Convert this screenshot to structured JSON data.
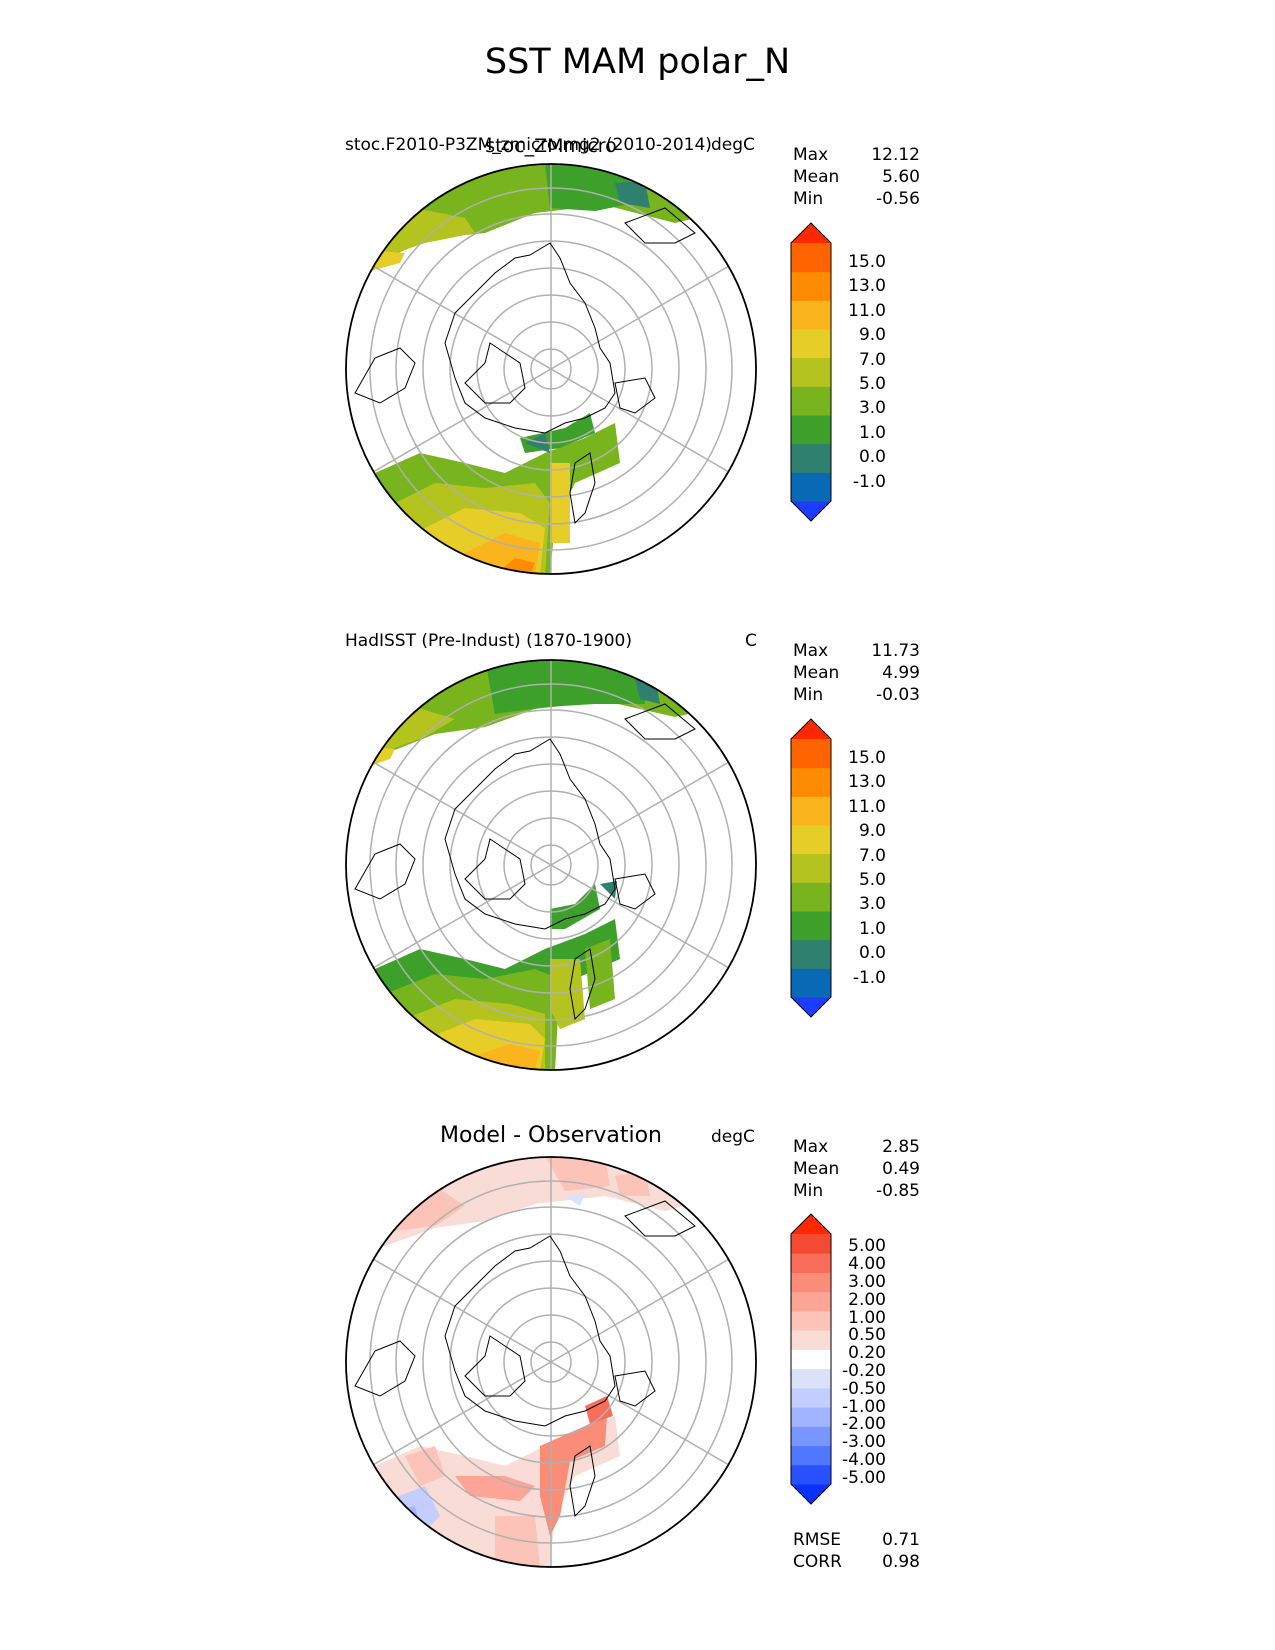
{
  "figure": {
    "title": "SST MAM polar_N"
  },
  "panels": [
    {
      "left_label": "stoc.F2010-P3ZM_zmicro.mg2 (2010-2014)",
      "center_label": "stoc_ZMmicro",
      "right_label": "degC",
      "stats": [
        {
          "name": "Max",
          "value": "12.12"
        },
        {
          "name": "Mean",
          "value": "5.60"
        },
        {
          "name": "Min",
          "value": "-0.56"
        }
      ],
      "colorbar": {
        "ticks": [
          "15.0",
          "13.0",
          "11.0",
          "9.0",
          "7.0",
          "5.0",
          "3.0",
          "1.0",
          "0.0",
          "-1.0"
        ],
        "colors": [
          "#1e3cff",
          "#0a69b4",
          "#308070",
          "#3ca02a",
          "#78b41e",
          "#b4c31e",
          "#e6cd28",
          "#fab41e",
          "#ff8c00",
          "#ff6400",
          "#ff2800"
        ]
      }
    },
    {
      "left_label": "HadISST (Pre-Indust) (1870-1900)",
      "center_label": "",
      "right_label": "C",
      "stats": [
        {
          "name": "Max",
          "value": "11.73"
        },
        {
          "name": "Mean",
          "value": "4.99"
        },
        {
          "name": "Min",
          "value": "-0.03"
        }
      ],
      "colorbar": {
        "ticks": [
          "15.0",
          "13.0",
          "11.0",
          "9.0",
          "7.0",
          "5.0",
          "3.0",
          "1.0",
          "0.0",
          "-1.0"
        ],
        "colors": [
          "#1e3cff",
          "#0a69b4",
          "#308070",
          "#3ca02a",
          "#78b41e",
          "#b4c31e",
          "#e6cd28",
          "#fab41e",
          "#ff8c00",
          "#ff6400",
          "#ff2800"
        ]
      }
    },
    {
      "left_label": "",
      "center_label": "Model - Observation",
      "right_label": "degC",
      "stats": [
        {
          "name": "Max",
          "value": "2.85"
        },
        {
          "name": "Mean",
          "value": "0.49"
        },
        {
          "name": "Min",
          "value": "-0.85"
        }
      ],
      "colorbar": {
        "ticks": [
          "5.00",
          "4.00",
          "3.00",
          "2.00",
          "1.00",
          "0.50",
          "0.20",
          "-0.20",
          "-0.50",
          "-1.00",
          "-2.00",
          "-3.00",
          "-4.00",
          "-5.00"
        ],
        "colors": [
          "#0a32ff",
          "#2850ff",
          "#5078ff",
          "#7896ff",
          "#a0b4ff",
          "#c3cdff",
          "#dce1fa",
          "#ffffff",
          "#fadcd7",
          "#fcc3b9",
          "#fca596",
          "#fa8c78",
          "#f86e5a",
          "#f54a32",
          "#ff2800"
        ]
      },
      "footer_stats": [
        {
          "name": "RMSE",
          "value": "0.71"
        },
        {
          "name": "CORR",
          "value": "0.98"
        }
      ]
    }
  ]
}
